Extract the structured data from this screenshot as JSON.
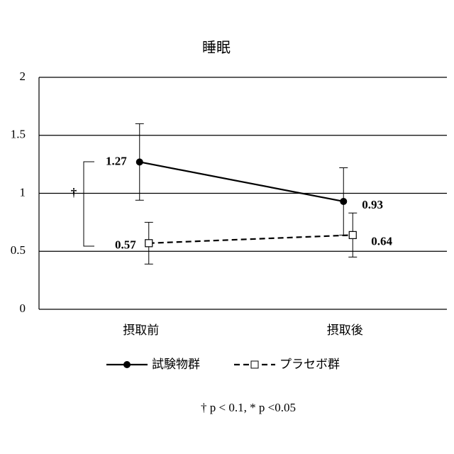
{
  "chart_data": {
    "type": "line",
    "title": "睡眠",
    "categories": [
      "摂取前",
      "摂取後"
    ],
    "series": [
      {
        "name": "試験物群",
        "color": "#000000",
        "dash": false,
        "marker": "circle",
        "values": [
          1.27,
          0.93
        ],
        "errors": [
          0.33,
          0.29
        ]
      },
      {
        "name": "プラセボ群",
        "color": "#000000",
        "dash": true,
        "marker": "square",
        "values": [
          0.57,
          0.64
        ],
        "errors": [
          0.18,
          0.19
        ]
      }
    ],
    "ylim": [
      0,
      2
    ],
    "yticks": [
      0,
      0.5,
      1,
      1.5,
      2
    ],
    "grid": true,
    "annotations": [
      "†",
      "† p < 0.1,  * p <0.05"
    ]
  }
}
